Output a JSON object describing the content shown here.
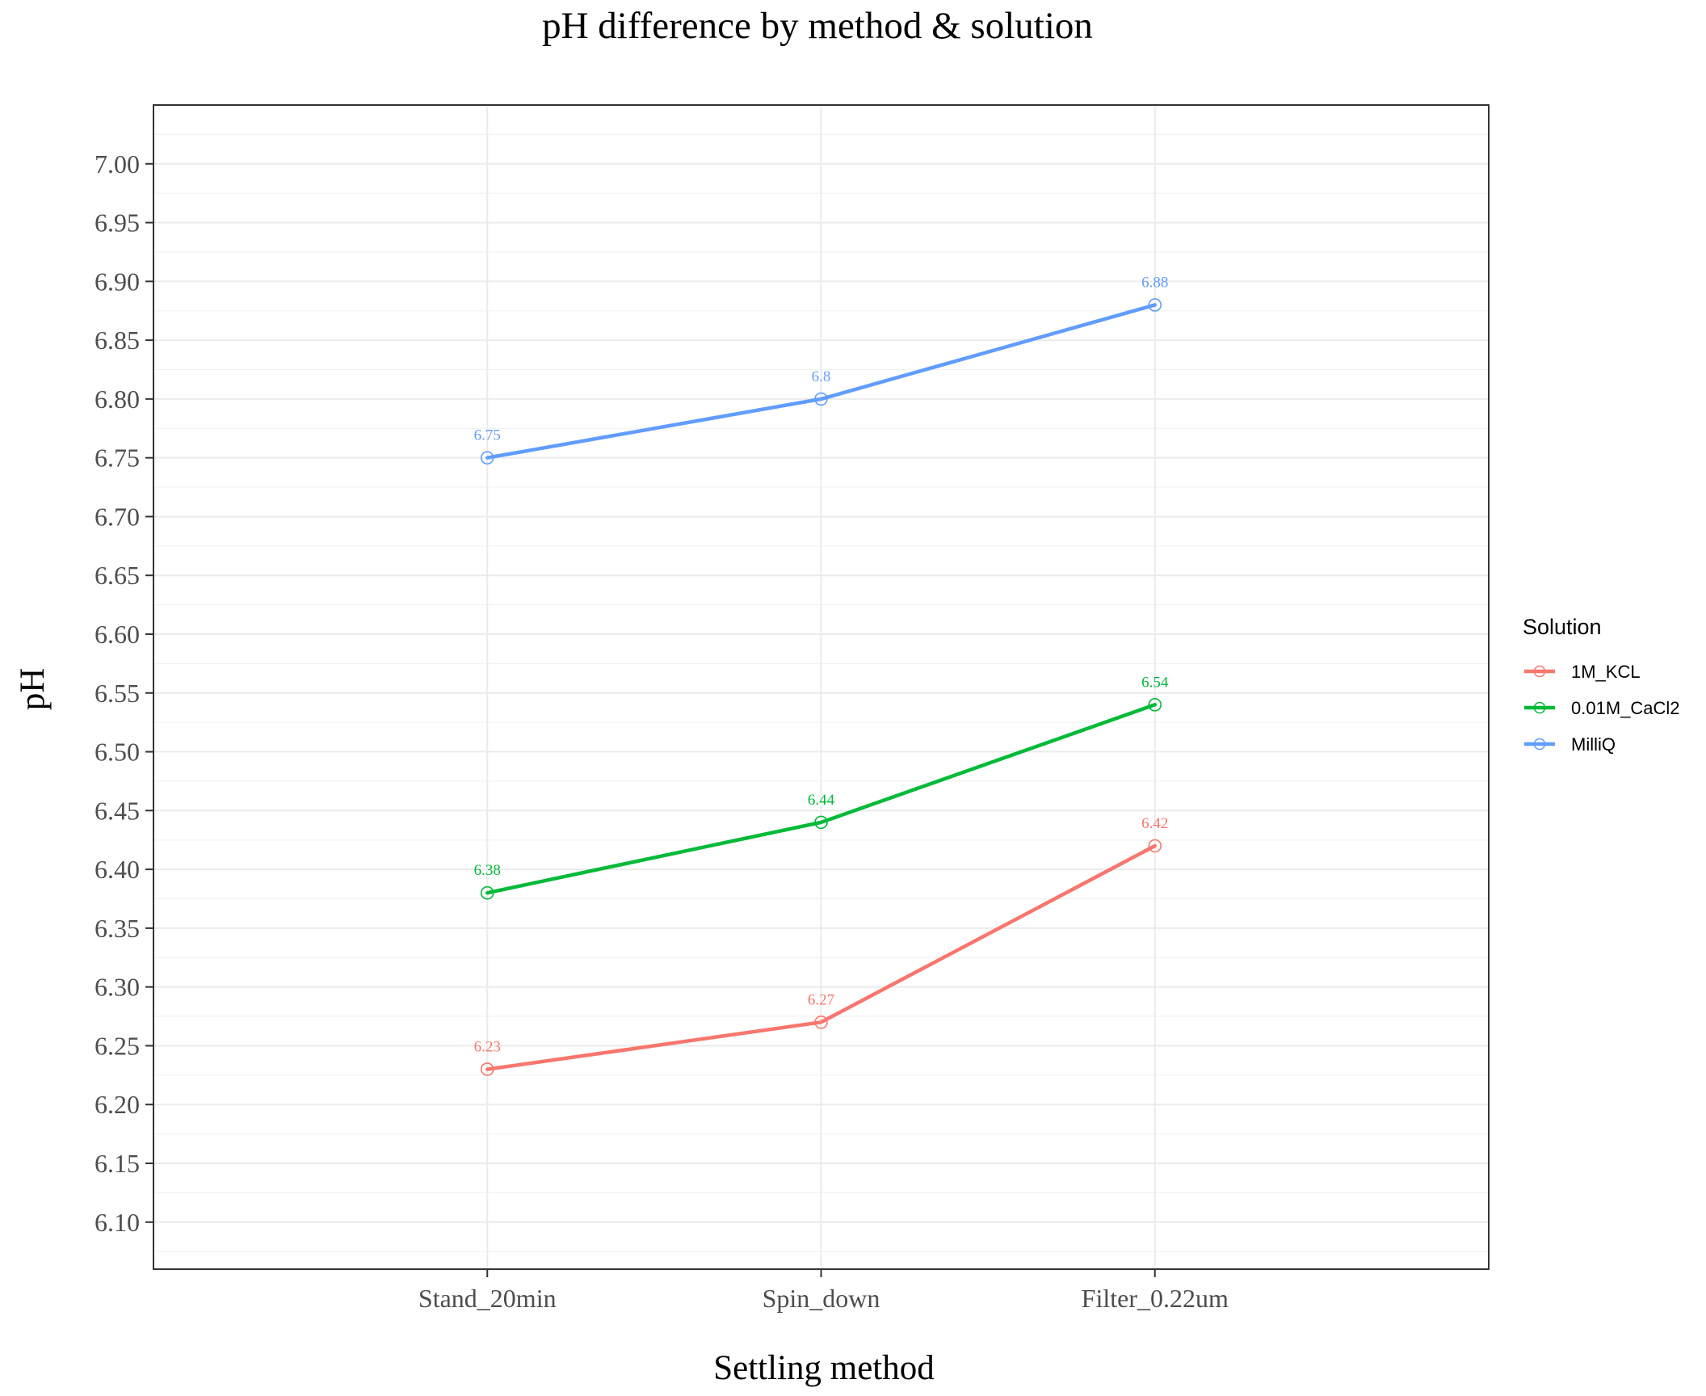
{
  "chart_data": {
    "type": "line",
    "title": "pH difference by method & solution",
    "xlabel": "Settling method",
    "ylabel": "pH",
    "categories": [
      "Stand_20min",
      "Spin_down",
      "Filter_0.22um"
    ],
    "ylim": [
      6.06,
      7.05
    ],
    "yticks": [
      "6.10",
      "6.15",
      "6.20",
      "6.25",
      "6.30",
      "6.35",
      "6.40",
      "6.45",
      "6.50",
      "6.55",
      "6.60",
      "6.65",
      "6.70",
      "6.75",
      "6.80",
      "6.85",
      "6.90",
      "6.95",
      "7.00"
    ],
    "grid": true,
    "legend": {
      "title": "Solution",
      "position": "right"
    },
    "series": [
      {
        "name": "1M_KCL",
        "color": "#F8766D",
        "values": [
          6.23,
          6.27,
          6.42
        ],
        "labels": [
          "6.23",
          "6.27",
          "6.42"
        ]
      },
      {
        "name": "0.01M_CaCl2",
        "color": "#00BA38",
        "values": [
          6.38,
          6.44,
          6.54
        ],
        "labels": [
          "6.38",
          "6.44",
          "6.54"
        ]
      },
      {
        "name": "MilliQ",
        "color": "#619CFF",
        "values": [
          6.75,
          6.8,
          6.88
        ],
        "labels": [
          "6.75",
          "6.8",
          "6.88"
        ]
      }
    ]
  }
}
